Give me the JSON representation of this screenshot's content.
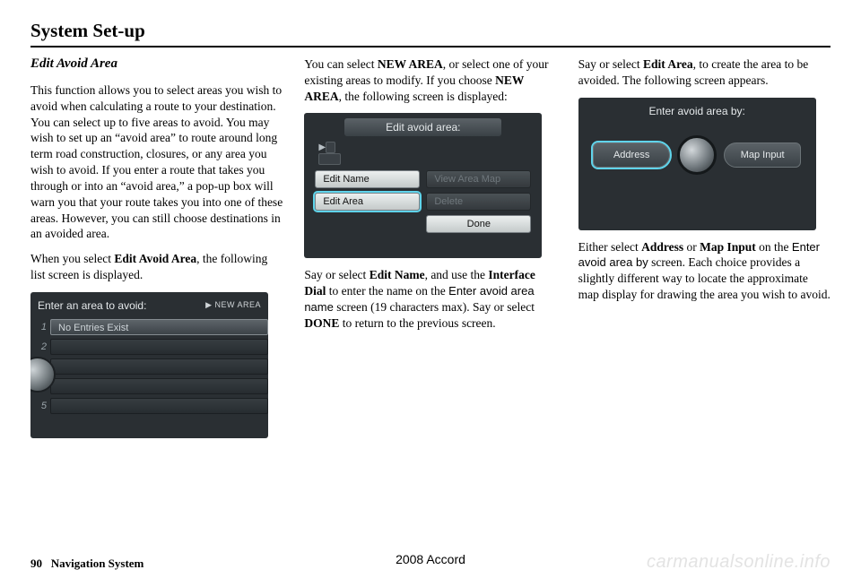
{
  "header": {
    "title": "System Set-up"
  },
  "col1": {
    "subtitle": "Edit Avoid Area",
    "p1": "This function allows you to select areas you wish to avoid when calculating a route to your destination. You can select up to five areas to avoid. You may wish to set up an “avoid area” to route around long term road construction, closures, or any area you wish to avoid. If you enter a route that takes you through or into an “avoid area,” a pop-up box will warn you that your route takes you into one of these areas. However, you can still choose destinations in an avoided area.",
    "p2_pre": "When you select ",
    "p2_b": "Edit Avoid Area",
    "p2_post": ", the following list screen is displayed.",
    "scr": {
      "title": "Enter an area to avoid:",
      "new_area": "▶ NEW AREA",
      "entry": "No Entries Exist",
      "rows": [
        1,
        2,
        3,
        4,
        5
      ]
    }
  },
  "col2": {
    "p1_a": "You can select ",
    "p1_b1": "NEW AREA",
    "p1_c": ", or select one of your existing areas to modify. If you choose ",
    "p1_b2": "NEW AREA",
    "p1_d": ", the following screen is displayed:",
    "scr": {
      "title": "Edit avoid area:",
      "edit_name": "Edit Name",
      "view_map": "View Area Map",
      "edit_area": "Edit Area",
      "delete": "Delete",
      "done": "Done"
    },
    "p2_a": "Say or select ",
    "p2_b1": "Edit Name",
    "p2_b": ", and use the ",
    "p2_b2": "Interface Dial",
    "p2_c": " to enter the name on the ",
    "p2_scr": "Enter avoid area name",
    "p2_d": " screen (19 characters max). Say or select ",
    "p2_b3": "DONE",
    "p2_e": " to return to the previous screen."
  },
  "col3": {
    "p1_a": "Say or select ",
    "p1_b": "Edit Area",
    "p1_c": ", to create the area to be avoided. The following screen appears.",
    "scr": {
      "title": "Enter avoid area by:",
      "address": "Address",
      "map_input": "Map Input"
    },
    "p2_a": "Either select ",
    "p2_b1": "Address",
    "p2_or": " or ",
    "p2_b2": "Map Input",
    "p2_b": " on the ",
    "p2_scr": "Enter avoid area by",
    "p2_c": " screen. Each choice provides a slightly different way to locate the approximate map display for drawing the area you wish to avoid."
  },
  "footer": {
    "page": "90",
    "section": "Navigation System",
    "center": "2008   Accord",
    "watermark": "carmanualsonline.info"
  }
}
